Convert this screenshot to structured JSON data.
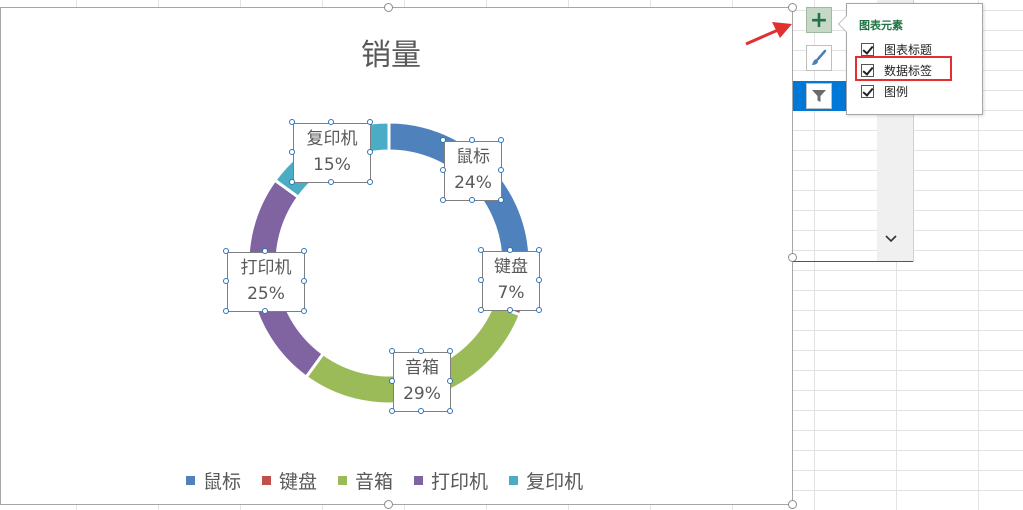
{
  "chart": {
    "title": "销量",
    "legend": [
      {
        "label": "鼠标",
        "color": "#4f81bd"
      },
      {
        "label": "键盘",
        "color": "#c0504d"
      },
      {
        "label": "音箱",
        "color": "#9bbb59"
      },
      {
        "label": "打印机",
        "color": "#8064a2"
      },
      {
        "label": "复印机",
        "color": "#4bacc6"
      }
    ]
  },
  "chart_data": {
    "type": "pie",
    "title": "销量",
    "categories": [
      "鼠标",
      "键盘",
      "音箱",
      "打印机",
      "复印机"
    ],
    "values": [
      24,
      7,
      29,
      25,
      15
    ],
    "value_labels": [
      "24%",
      "7%",
      "29%",
      "25%",
      "15%"
    ],
    "colors": [
      "#4f81bd",
      "#c0504d",
      "#9bbb59",
      "#8064a2",
      "#4bacc6"
    ],
    "legend_position": "bottom"
  },
  "elements_panel": {
    "title": "图表元素",
    "options": [
      {
        "label": "图表标题",
        "checked": true
      },
      {
        "label": "数据标签",
        "checked": true
      },
      {
        "label": "图例",
        "checked": true
      }
    ]
  },
  "side_buttons": {
    "plus_icon": "plus-icon",
    "brush_icon": "brush-icon",
    "filter_icon": "filter-icon"
  }
}
